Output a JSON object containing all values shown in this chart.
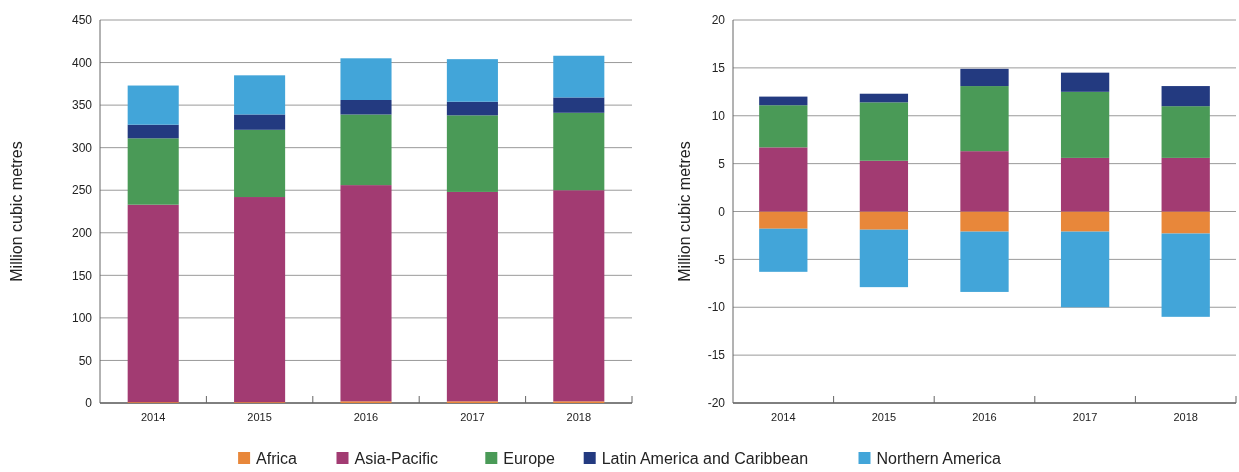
{
  "chart_data": [
    {
      "type": "bar",
      "stacked": true,
      "ylabel": "Million cubic metres",
      "categories": [
        "2014",
        "2015",
        "2016",
        "2017",
        "2018"
      ],
      "ylim": [
        0,
        450
      ],
      "yticks": [
        0,
        50,
        100,
        150,
        200,
        250,
        300,
        350,
        400,
        450
      ],
      "grid": "y",
      "legend": "bottom",
      "series": [
        {
          "name": "Africa",
          "color": "#e8873a",
          "values": [
            1,
            1,
            2,
            2,
            2
          ]
        },
        {
          "name": "Asia-Pacific",
          "color": "#a23b72",
          "values": [
            232,
            241,
            254,
            246,
            248
          ]
        },
        {
          "name": "Europe",
          "color": "#4a9a57",
          "values": [
            78,
            79,
            83,
            90,
            91
          ]
        },
        {
          "name": "Latin America and Caribbean",
          "color": "#233a80",
          "values": [
            16,
            18,
            17,
            16,
            18
          ]
        },
        {
          "name": "Northern America",
          "color": "#42a5d9",
          "values": [
            46,
            46,
            49,
            50,
            49
          ]
        }
      ]
    },
    {
      "type": "bar",
      "stacked": true,
      "ylabel": "Million cubic metres",
      "categories": [
        "2014",
        "2015",
        "2016",
        "2017",
        "2018"
      ],
      "ylim": [
        -20,
        20
      ],
      "yticks": [
        -20,
        -15,
        -10,
        -5,
        0,
        5,
        10,
        15,
        20
      ],
      "grid": "y",
      "series": [
        {
          "color": "#e8873a",
          "values": [
            -1.8,
            -1.9,
            -2.1,
            -2.1,
            -2.3
          ]
        },
        {
          "color": "#a23b72",
          "values": [
            6.7,
            5.3,
            6.3,
            5.6,
            5.6
          ]
        },
        {
          "color": "#4a9a57",
          "values": [
            4.4,
            6.1,
            6.8,
            6.9,
            5.4
          ]
        },
        {
          "color": "#233a80",
          "values": [
            0.9,
            0.9,
            1.8,
            2.0,
            2.1
          ]
        },
        {
          "color": "#42a5d9",
          "values": [
            -4.5,
            -6.0,
            -6.3,
            -7.9,
            -8.7
          ]
        }
      ]
    }
  ]
}
